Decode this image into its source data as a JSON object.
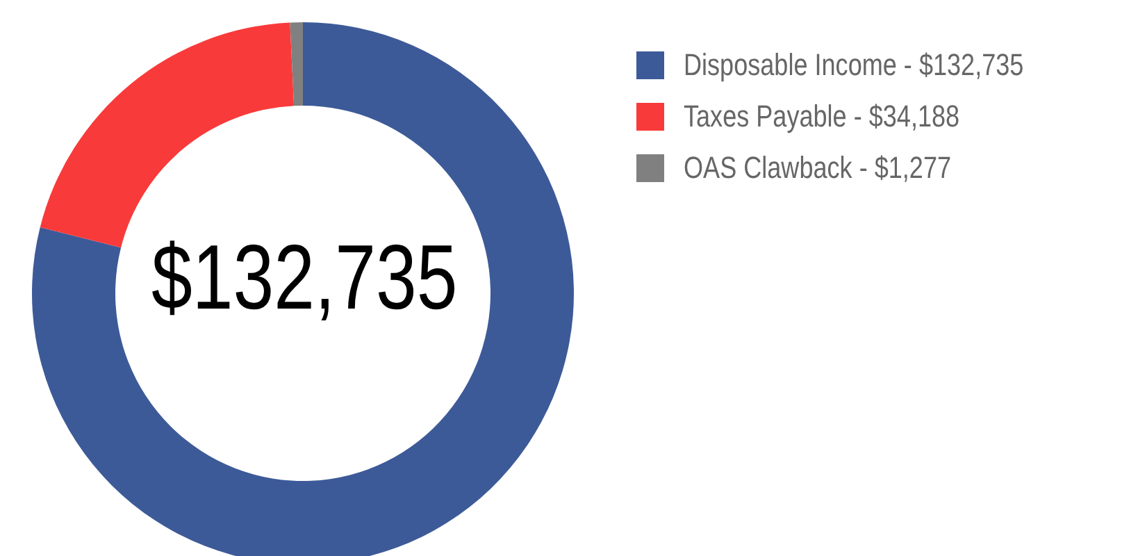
{
  "chart_data": {
    "type": "donut",
    "categories": [
      "Disposable Income",
      "Taxes Payable",
      "OAS Clawback"
    ],
    "values": [
      132735,
      34188,
      1277
    ],
    "value_labels": [
      "$132,735",
      "$34,188",
      "$1,277"
    ],
    "colors": [
      "#3d5a98",
      "#f93a3a",
      "#808080"
    ],
    "legend": "top right",
    "annotations": [
      "$132,735"
    ]
  }
}
